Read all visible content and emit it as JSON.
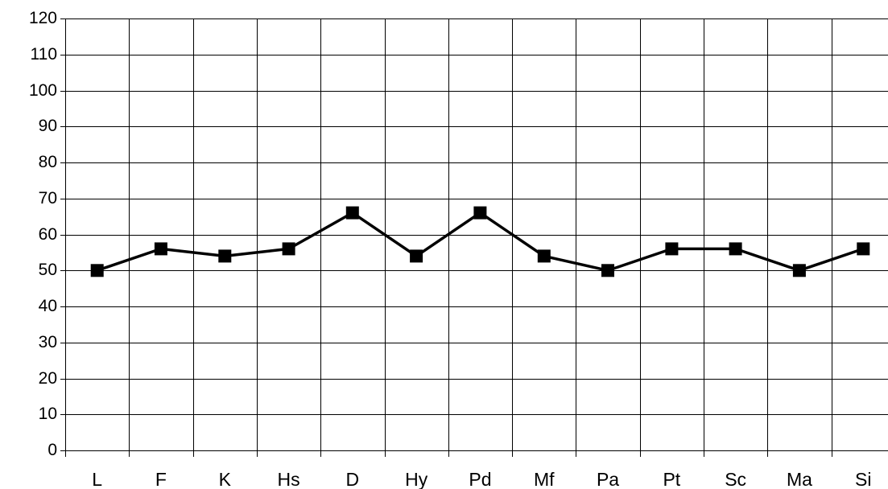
{
  "chart_data": {
    "type": "line",
    "title": "",
    "xlabel": "",
    "ylabel": "",
    "categories": [
      "L",
      "F",
      "K",
      "Hs",
      "D",
      "Hy",
      "Pd",
      "Mf",
      "Pa",
      "Pt",
      "Sc",
      "Ma",
      "Si"
    ],
    "series": [
      {
        "values": [
          50,
          56,
          54,
          56,
          66,
          54,
          66,
          54,
          50,
          56,
          56,
          50,
          56
        ],
        "color": "#000000",
        "marker": "square"
      }
    ],
    "ylim": [
      0,
      120
    ],
    "yticks": [
      0,
      10,
      20,
      30,
      40,
      50,
      60,
      70,
      80,
      90,
      100,
      110,
      120
    ],
    "grid": true,
    "legend": "none"
  }
}
